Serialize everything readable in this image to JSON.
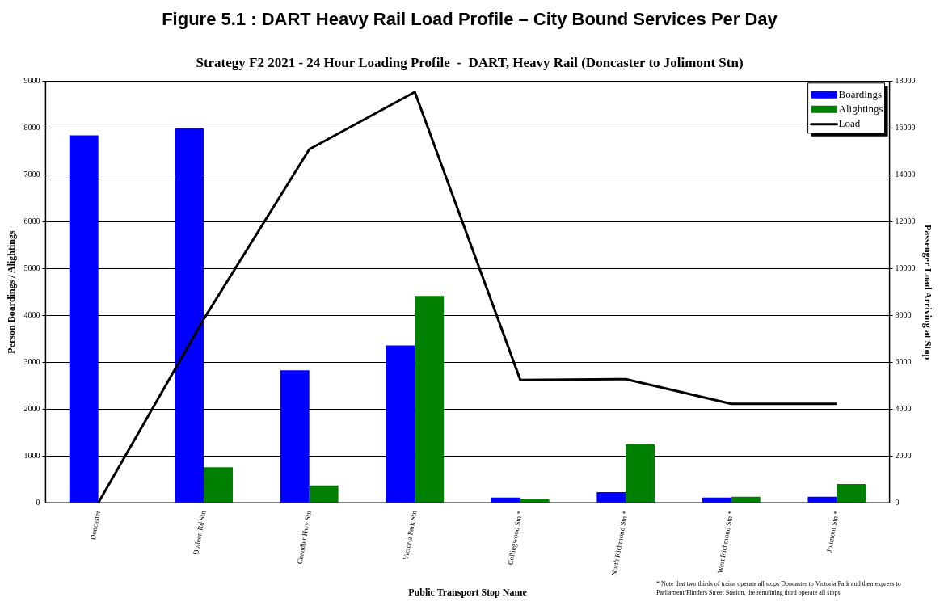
{
  "chart_data": {
    "type": "bar",
    "title": "Figure 5.1 : DART Heavy Rail Load Profile – City Bound Services Per Day",
    "subtitle": "Strategy F2 2021 - 24 Hour Loading Profile  -  DART, Heavy Rail (Doncaster to Jolimont Stn)",
    "xlabel": "Public Transport Stop Name",
    "ylabel": "Person Boardings / Alightings",
    "y2label": "Passenger Load Arriving at Stop",
    "categories": [
      "Doncaster",
      "Bulleen Rd Stn",
      "Chandler Hwy Stn",
      "Victoria Park Stn",
      "Collingwood Stn *",
      "North Richmond Stn *",
      "West Richmond Stn *",
      "Jolimont Stn *"
    ],
    "series": [
      {
        "name": "Boardings",
        "color": "#0000ff",
        "values": [
          7850,
          8000,
          2830,
          3360,
          110,
          230,
          110,
          130
        ]
      },
      {
        "name": "Alightings",
        "color": "#008000",
        "values": [
          0,
          760,
          370,
          4420,
          90,
          1250,
          130,
          400
        ]
      },
      {
        "name": "Load",
        "type": "line",
        "axis": "y2",
        "color": "#000000",
        "values": [
          0,
          7850,
          15100,
          17550,
          5250,
          5280,
          4230,
          4230
        ]
      }
    ],
    "ylim": [
      0,
      9000
    ],
    "yticks": [
      0,
      1000,
      2000,
      3000,
      4000,
      5000,
      6000,
      7000,
      8000,
      9000
    ],
    "y2lim": [
      0,
      18000
    ],
    "y2ticks": [
      0,
      2000,
      4000,
      6000,
      8000,
      10000,
      12000,
      14000,
      16000,
      18000
    ],
    "grid": "y",
    "legend": "top right",
    "marker": "none",
    "line_style": "solid",
    "annotations": [
      "* Note that two thirds of trains operate all stops Doncaster to Victoria Park and then express to Parliament/Flinders Street Station, the remaining third operate all stops"
    ]
  }
}
